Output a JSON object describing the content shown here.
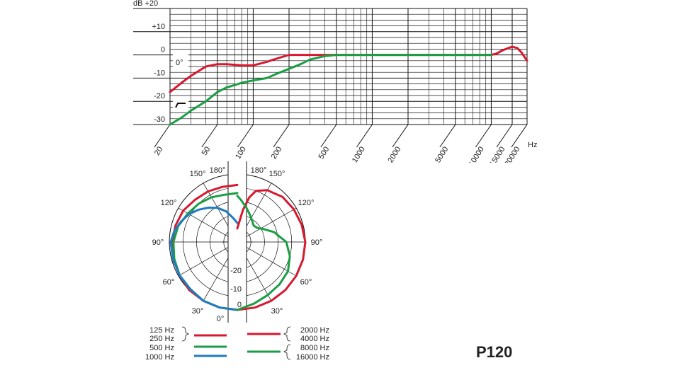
{
  "chart_data": [
    {
      "type": "line",
      "title": "",
      "xlabel": "Hz",
      "ylabel": "dB",
      "x_scale": "log",
      "xlim": [
        20,
        20000
      ],
      "ylim": [
        -30,
        20
      ],
      "x_ticks": [
        20,
        50,
        100,
        200,
        500,
        1000,
        2000,
        5000,
        10000,
        15000,
        20000
      ],
      "x_tick_labels": [
        "20",
        "50",
        "100",
        "200",
        "500",
        "1000",
        "2000",
        "5000",
        "10000",
        "15000",
        "20000"
      ],
      "y_ticks": [
        20,
        10,
        0,
        -10,
        -20,
        -30
      ],
      "y_tick_labels": [
        "dB  +20",
        "+10",
        "0",
        "-10",
        "-20",
        "-30"
      ],
      "grid": true,
      "annotations": [
        "0°"
      ],
      "series": [
        {
          "color": "#d6192f",
          "x": [
            20,
            25,
            30,
            40,
            50,
            60,
            80,
            100,
            130,
            160,
            200,
            300,
            500,
            1000,
            2000,
            5000,
            8000,
            10000,
            11000,
            12500,
            14000,
            15000,
            16500,
            18000,
            20000
          ],
          "y": [
            -16,
            -12,
            -9,
            -5,
            -4,
            -4,
            -4.5,
            -4.5,
            -3,
            -1.5,
            0,
            0,
            0,
            0,
            0,
            0,
            0,
            0,
            0.5,
            2,
            3,
            3.5,
            3,
            1,
            -2.5
          ]
        },
        {
          "color": "#1a9e44",
          "x": [
            20,
            25,
            30,
            40,
            50,
            60,
            70,
            80,
            100,
            130,
            160,
            200,
            250,
            300,
            400,
            500,
            600,
            800,
            1000,
            2000,
            5000,
            10000
          ],
          "y": [
            -30,
            -27,
            -24,
            -20,
            -16,
            -14,
            -13,
            -12,
            -11,
            -10,
            -8,
            -6,
            -4,
            -2,
            -0.5,
            0,
            0,
            0,
            0,
            0,
            0,
            0
          ]
        }
      ]
    },
    {
      "type": "polar",
      "angle_labels": [
        "0°",
        "30°",
        "60°",
        "90°",
        "120°",
        "150°",
        "180°"
      ],
      "radial_labels": [
        "0",
        "-10",
        "-20"
      ],
      "series": [
        {
          "side": "left",
          "color": "#d6192f",
          "legend": [
            "125 Hz",
            "250 Hz"
          ],
          "angles": [
            0,
            15,
            30,
            45,
            60,
            75,
            90,
            105,
            120,
            135,
            150,
            165,
            180
          ],
          "values_db": [
            0,
            0,
            0,
            0,
            -0.5,
            -0.5,
            -1,
            -1.5,
            -2,
            -3,
            -3.5,
            -4,
            -4
          ]
        },
        {
          "side": "left",
          "color": "#1a9e44",
          "legend": [
            "500 Hz"
          ],
          "angles": [
            0,
            15,
            30,
            45,
            60,
            75,
            90,
            105,
            120,
            135,
            150,
            165,
            180
          ],
          "values_db": [
            0,
            0,
            0,
            -0.5,
            -0.5,
            -1,
            -1.5,
            -2.5,
            -4,
            -5,
            -6,
            -7,
            -7
          ]
        },
        {
          "side": "left",
          "color": "#1f7cc0",
          "legend": [
            "1000 Hz"
          ],
          "angles": [
            0,
            15,
            30,
            45,
            60,
            75,
            90,
            100,
            110,
            120,
            130,
            140,
            150,
            160,
            170,
            180
          ],
          "values_db": [
            0,
            0,
            0,
            -0.5,
            -0.5,
            -0.5,
            -0.5,
            -1.5,
            -3,
            -4.5,
            -6.5,
            -8.5,
            -10.5,
            -13,
            -16,
            -18
          ]
        },
        {
          "side": "right",
          "color": "#d6192f",
          "legend": [
            "2000 Hz",
            "4000 Hz"
          ],
          "angles": [
            0,
            15,
            30,
            45,
            60,
            75,
            90,
            105,
            120,
            135,
            150,
            160,
            165,
            170,
            175,
            180
          ],
          "values_db": [
            0,
            0,
            0,
            0,
            0,
            0,
            0,
            -0.5,
            -1,
            -1.5,
            -3,
            -5,
            -8,
            -13,
            -18,
            -20
          ]
        },
        {
          "side": "right",
          "color": "#1a9e44",
          "legend": [
            "8000 Hz",
            "16000 Hz"
          ],
          "angles": [
            0,
            15,
            30,
            45,
            60,
            75,
            90,
            105,
            115,
            125,
            135,
            145,
            155,
            165,
            175,
            180
          ],
          "values_db": [
            0,
            -1.5,
            -2.5,
            -3,
            -3.5,
            -5,
            -7,
            -11,
            -14,
            -16,
            -16.5,
            -15.5,
            -14,
            -12,
            -9.5,
            -8
          ]
        }
      ]
    }
  ],
  "model": "P120"
}
